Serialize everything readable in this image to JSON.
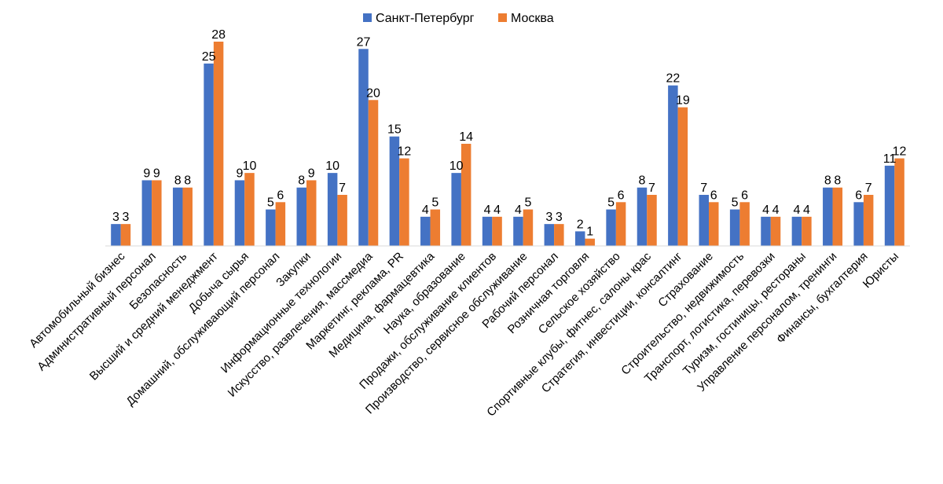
{
  "chart_data": {
    "type": "bar",
    "title": "",
    "xlabel": "",
    "ylabel": "",
    "ylim": [
      0,
      28
    ],
    "grid": false,
    "legend_position": "top",
    "categories": [
      "Автомобильный бизнес",
      "Административный персонал",
      "Безопасность",
      "Высший и средний менеджмент",
      "Добыча сырья",
      "Домашний, обслуживающий персонал",
      "Закупки",
      "Информационные технологии",
      "Искусство, развлечения, массмедиа",
      "Маркетинг, реклама, PR",
      "Медицина, фармацевтика",
      "Наука, образование",
      "Продажи, обслуживание клиентов",
      "Производство, сервисное обслуживание",
      "Рабочий персонал",
      "Розничная торговля",
      "Сельское хозяйство",
      "Спортивные клубы, фитнес, салоны крас",
      "Стратегия, инвестиции, консалтинг",
      "Страхование",
      "Строительство, недвижимость",
      "Транспорт, логистика, перевозки",
      "Туризм, гостиницы, рестораны",
      "Управление персоналом, тренинги",
      "Финансы, бухгалтерия",
      "Юристы"
    ],
    "series": [
      {
        "name": "Санкт-Петербург",
        "color": "#4472C4",
        "values": [
          3,
          9,
          8,
          25,
          9,
          5,
          8,
          10,
          27,
          15,
          4,
          10,
          4,
          4,
          3,
          2,
          5,
          8,
          22,
          7,
          5,
          4,
          4,
          8,
          6,
          11
        ]
      },
      {
        "name": "Москва",
        "color": "#ED7D31",
        "values": [
          3,
          9,
          8,
          28,
          10,
          6,
          9,
          7,
          20,
          12,
          5,
          14,
          4,
          5,
          3,
          1,
          6,
          7,
          19,
          6,
          6,
          4,
          4,
          8,
          7,
          12
        ]
      }
    ]
  }
}
